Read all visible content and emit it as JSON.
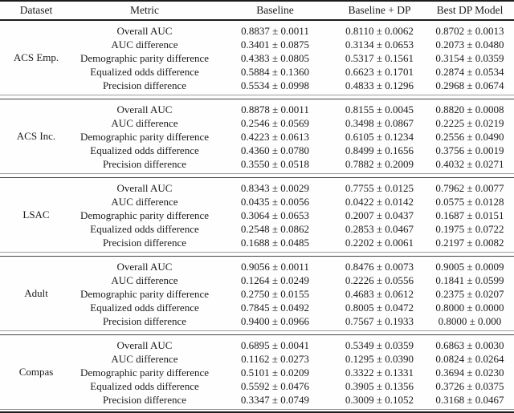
{
  "table": {
    "headers": {
      "dataset": "Dataset",
      "metric": "Metric",
      "baseline": "Baseline",
      "baseline_dp": "Baseline + DP",
      "best_dp": "Best DP Model"
    },
    "blocks": [
      {
        "dataset": "ACS Emp.",
        "rows": [
          {
            "metric": "Overall AUC",
            "baseline": "0.8837 ± 0.0011",
            "baseline_dp": "0.8110 ± 0.0062",
            "best_dp": "0.8702 ± 0.0013"
          },
          {
            "metric": "AUC difference",
            "baseline": "0.3401 ± 0.0875",
            "baseline_dp": "0.3134 ± 0.0653",
            "best_dp": "0.2073 ± 0.0480"
          },
          {
            "metric": "Demographic parity difference",
            "baseline": "0.4383 ± 0.0805",
            "baseline_dp": "0.5317 ± 0.1561",
            "best_dp": "0.3154 ± 0.0359"
          },
          {
            "metric": "Equalized odds difference",
            "baseline": "0.5884 ± 0.1360",
            "baseline_dp": "0.6623 ± 0.1701",
            "best_dp": "0.2874 ± 0.0534"
          },
          {
            "metric": "Precision difference",
            "baseline": "0.5534 ± 0.0998",
            "baseline_dp": "0.4833 ± 0.1296",
            "best_dp": "0.2968 ± 0.0674"
          }
        ]
      },
      {
        "dataset": "ACS Inc.",
        "rows": [
          {
            "metric": "Overall AUC",
            "baseline": "0.8878 ± 0.0011",
            "baseline_dp": "0.8155 ± 0.0045",
            "best_dp": "0.8820 ± 0.0008"
          },
          {
            "metric": "AUC difference",
            "baseline": "0.2546 ± 0.0569",
            "baseline_dp": "0.3498 ± 0.0867",
            "best_dp": "0.2225 ± 0.0219"
          },
          {
            "metric": "Demographic parity difference",
            "baseline": "0.4223 ± 0.0613",
            "baseline_dp": "0.6105 ± 0.1234",
            "best_dp": "0.2556 ± 0.0490"
          },
          {
            "metric": "Equalized odds difference",
            "baseline": "0.4360 ± 0.0780",
            "baseline_dp": "0.8499 ± 0.1656",
            "best_dp": "0.3756 ± 0.0019"
          },
          {
            "metric": "Precision difference",
            "baseline": "0.3550 ± 0.0518",
            "baseline_dp": "0.7882 ± 0.2009",
            "best_dp": "0.4032 ± 0.0271"
          }
        ]
      },
      {
        "dataset": "LSAC",
        "rows": [
          {
            "metric": "Overall AUC",
            "baseline": "0.8343 ± 0.0029",
            "baseline_dp": "0.7755 ± 0.0125",
            "best_dp": "0.7962 ± 0.0077"
          },
          {
            "metric": "AUC difference",
            "baseline": "0.0435 ± 0.0056",
            "baseline_dp": "0.0422 ± 0.0142",
            "best_dp": "0.0575 ± 0.0128"
          },
          {
            "metric": "Demographic parity difference",
            "baseline": "0.3064 ± 0.0653",
            "baseline_dp": "0.2007 ± 0.0437",
            "best_dp": "0.1687 ± 0.0151"
          },
          {
            "metric": "Equalized odds difference",
            "baseline": "0.2548 ± 0.0862",
            "baseline_dp": "0.2853 ± 0.0467",
            "best_dp": "0.1975 ± 0.0722"
          },
          {
            "metric": "Precision difference",
            "baseline": "0.1688 ± 0.0485",
            "baseline_dp": "0.2202 ± 0.0061",
            "best_dp": "0.2197 ± 0.0082"
          }
        ]
      },
      {
        "dataset": "Adult",
        "rows": [
          {
            "metric": "Overall AUC",
            "baseline": "0.9056 ± 0.0011",
            "baseline_dp": "0.8476 ± 0.0073",
            "best_dp": "0.9005 ± 0.0009"
          },
          {
            "metric": "AUC difference",
            "baseline": "0.1264 ± 0.0249",
            "baseline_dp": "0.2226 ± 0.0556",
            "best_dp": "0.1841 ± 0.0599"
          },
          {
            "metric": "Demographic parity difference",
            "baseline": "0.2750 ± 0.0155",
            "baseline_dp": "0.4683 ± 0.0612",
            "best_dp": "0.2375 ± 0.0207"
          },
          {
            "metric": "Equalized odds difference",
            "baseline": "0.7845 ± 0.0492",
            "baseline_dp": "0.8005 ± 0.0472",
            "best_dp": "0.8000 ± 0.0000"
          },
          {
            "metric": "Precision difference",
            "baseline": "0.9400 ± 0.0966",
            "baseline_dp": "0.7567 ± 0.1933",
            "best_dp": "0.8000 ± 0.000"
          }
        ]
      },
      {
        "dataset": "Compas",
        "rows": [
          {
            "metric": "Overall AUC",
            "baseline": "0.6895 ± 0.0041",
            "baseline_dp": "0.5349 ± 0.0359",
            "best_dp": "0.6863 ± 0.0030"
          },
          {
            "metric": "AUC difference",
            "baseline": "0.1162 ± 0.0273",
            "baseline_dp": "0.1295 ± 0.0390",
            "best_dp": "0.0824 ± 0.0264"
          },
          {
            "metric": "Demographic parity difference",
            "baseline": "0.5101 ± 0.0209",
            "baseline_dp": "0.3322 ± 0.1331",
            "best_dp": "0.3694 ± 0.0230"
          },
          {
            "metric": "Equalized odds difference",
            "baseline": "0.5592 ± 0.0476",
            "baseline_dp": "0.3905 ± 0.1356",
            "best_dp": "0.3726 ± 0.0375"
          },
          {
            "metric": "Precision difference",
            "baseline": "0.3347 ± 0.0749",
            "baseline_dp": "0.3009 ± 0.1052",
            "best_dp": "0.3168 ± 0.0467"
          }
        ]
      }
    ]
  }
}
